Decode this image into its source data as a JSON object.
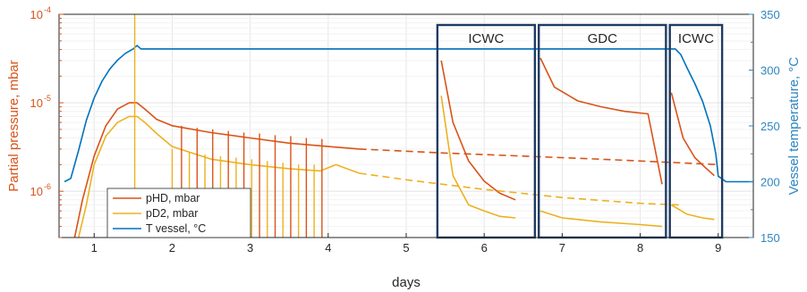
{
  "chart_data": {
    "type": "line",
    "xlabel": "days",
    "ylabel_left": "Partial pressure, mbar",
    "ylabel_right": "Vessel temperature, °C",
    "y_left_scale": "log",
    "xlim": [
      0.55,
      9.45
    ],
    "ylim_left": [
      3e-07,
      0.0001
    ],
    "ylim_right": [
      150,
      350
    ],
    "x_ticks": [
      "1",
      "2",
      "3",
      "4",
      "5",
      "6",
      "7",
      "8",
      "9"
    ],
    "y_left_ticks": [
      {
        "base": "10",
        "exp": "-6",
        "value": 1e-06
      },
      {
        "base": "10",
        "exp": "-5",
        "value": 1e-05
      },
      {
        "base": "10",
        "exp": "-4",
        "value": 0.0001
      }
    ],
    "y_right_ticks": [
      "150",
      "200",
      "250",
      "300",
      "350"
    ],
    "grid": true,
    "legend_position": "bottom-left",
    "colors": {
      "pHD": "#d95319",
      "pD2": "#edb120",
      "T": "#0072bd",
      "box": "#1f3b63",
      "left_axis": "#d95319",
      "right_axis": "#2e86c1"
    },
    "series": [
      {
        "name": "pHD, mbar",
        "axis": "left",
        "x": [
          0.75,
          0.85,
          1.0,
          1.15,
          1.3,
          1.45,
          1.55,
          1.65,
          1.8,
          2.0,
          2.5,
          3.0,
          3.5,
          4.0,
          4.4
        ],
        "y": [
          3e-07,
          8e-07,
          2.5e-06,
          5.5e-06,
          8.5e-06,
          1e-05,
          1e-05,
          8.5e-06,
          6.5e-06,
          5.5e-06,
          4.6e-06,
          4e-06,
          3.5e-06,
          3.2e-06,
          3e-06
        ]
      },
      {
        "name": "pHD, mbar (extrapolated)",
        "axis": "left",
        "style": "dashed",
        "x": [
          4.4,
          5.5,
          6.5,
          7.5,
          8.5,
          9.0
        ],
        "y": [
          3e-06,
          2.7e-06,
          2.5e-06,
          2.3e-06,
          2.1e-06,
          2e-06
        ]
      },
      {
        "name": "pHD, mbar (ICWC 1)",
        "axis": "left",
        "x": [
          5.45,
          5.6,
          5.8,
          6.0,
          6.2,
          6.4
        ],
        "y": [
          3e-05,
          6e-06,
          2.2e-06,
          1.3e-06,
          9.5e-07,
          8e-07
        ]
      },
      {
        "name": "pHD, mbar (GDC)",
        "axis": "left",
        "x": [
          6.72,
          6.9,
          7.2,
          7.5,
          7.8,
          8.1,
          8.28
        ],
        "y": [
          3.2e-05,
          1.5e-05,
          1.05e-05,
          9e-06,
          8e-06,
          7.5e-06,
          1.2e-06
        ]
      },
      {
        "name": "pHD, mbar (ICWC 2)",
        "axis": "left",
        "x": [
          8.4,
          8.55,
          8.7,
          8.85,
          8.95
        ],
        "y": [
          1.3e-05,
          4e-06,
          2.4e-06,
          1.8e-06,
          1.5e-06
        ]
      },
      {
        "name": "pD2, mbar",
        "axis": "left",
        "x": [
          0.8,
          0.9,
          1.0,
          1.15,
          1.3,
          1.45,
          1.55,
          1.65,
          1.8,
          2.0,
          2.5,
          3.0,
          3.5,
          3.9,
          4.1,
          4.4
        ],
        "y": [
          3e-07,
          7e-07,
          2e-06,
          4.2e-06,
          6e-06,
          7e-06,
          7e-06,
          6e-06,
          4.5e-06,
          3.2e-06,
          2.3e-06,
          2e-06,
          1.8e-06,
          1.7e-06,
          2e-06,
          1.6e-06
        ]
      },
      {
        "name": "pD2, mbar (extrapolated)",
        "axis": "left",
        "style": "dashed",
        "x": [
          4.4,
          5.0,
          6.0,
          7.0,
          8.0,
          8.5
        ],
        "y": [
          1.6e-06,
          1.35e-06,
          1.05e-06,
          8.5e-07,
          7.3e-07,
          7e-07
        ]
      },
      {
        "name": "pD2, mbar (ICWC 1)",
        "axis": "left",
        "x": [
          5.45,
          5.6,
          5.8,
          6.0,
          6.2,
          6.4
        ],
        "y": [
          1.2e-05,
          1.5e-06,
          7e-07,
          6e-07,
          5.2e-07,
          5e-07
        ]
      },
      {
        "name": "pD2, mbar (GDC)",
        "axis": "left",
        "x": [
          6.72,
          7.0,
          7.5,
          8.0,
          8.28
        ],
        "y": [
          6e-07,
          5e-07,
          4.5e-07,
          4.2e-07,
          4e-07
        ]
      },
      {
        "name": "pD2, mbar (ICWC 2)",
        "axis": "left",
        "x": [
          8.4,
          8.6,
          8.8,
          8.95
        ],
        "y": [
          7e-07,
          5.5e-07,
          5e-07,
          4.8e-07
        ]
      },
      {
        "name": "T vessel, °C",
        "axis": "right",
        "x": [
          0.62,
          0.7,
          0.8,
          0.9,
          1.0,
          1.1,
          1.2,
          1.3,
          1.4,
          1.5,
          1.55,
          1.6,
          2.0,
          3.0,
          4.0,
          5.0,
          6.0,
          7.0,
          8.0,
          8.45,
          8.52,
          8.6,
          8.7,
          8.8,
          8.9,
          8.97,
          9.0,
          9.1,
          9.45
        ],
        "y": [
          200,
          203,
          228,
          255,
          275,
          290,
          301,
          309,
          315,
          319,
          322,
          319,
          319,
          319,
          319,
          319,
          319,
          319,
          319,
          319,
          314,
          302,
          288,
          272,
          250,
          225,
          205,
          200,
          200
        ]
      }
    ],
    "spikes": [
      {
        "series": "pHD, mbar",
        "x": [
          2.12,
          2.32,
          2.52,
          2.72,
          2.92,
          3.12,
          3.32,
          3.52,
          3.72,
          3.92
        ],
        "peak": [
          5.5e-06,
          5.2e-06,
          5e-06,
          4.8e-06,
          4.6e-06,
          4.5e-06,
          4.3e-06,
          4.2e-06,
          4e-06,
          3.9e-06
        ]
      },
      {
        "series": "pD2, mbar",
        "x": [
          1.52,
          2.0,
          2.22,
          2.42,
          2.62,
          2.82,
          3.02,
          3.22,
          3.42,
          3.62,
          3.82
        ],
        "peak": [
          0.0001,
          3e-06,
          2.8e-06,
          2.6e-06,
          2.5e-06,
          2.4e-06,
          2.3e-06,
          2.2e-06,
          2.1e-06,
          2e-06,
          2e-06
        ]
      }
    ],
    "regions": [
      {
        "label": "ICWC",
        "x": [
          5.4,
          6.65
        ]
      },
      {
        "label": "GDC",
        "x": [
          6.7,
          8.33
        ]
      },
      {
        "label": "ICWC",
        "x": [
          8.38,
          9.05
        ]
      }
    ]
  }
}
